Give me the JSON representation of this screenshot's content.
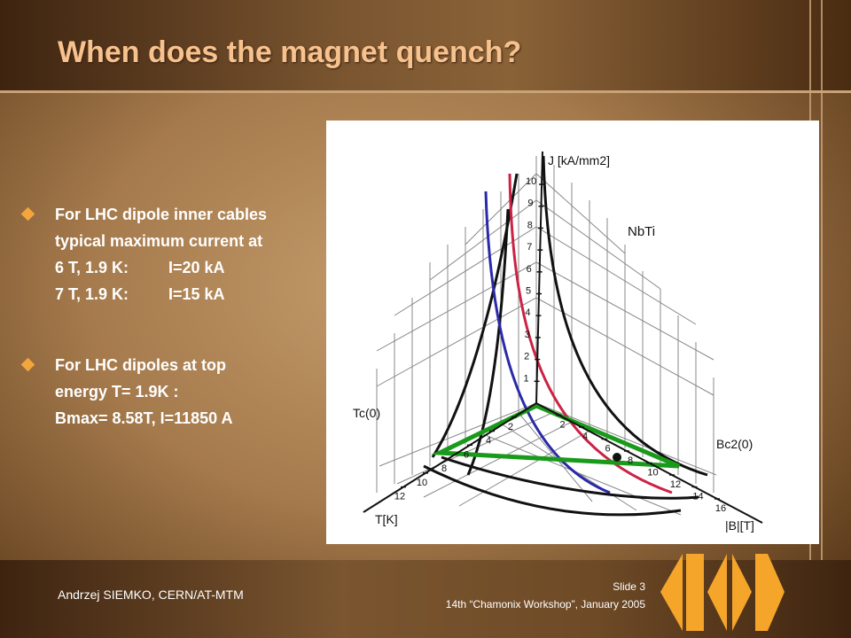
{
  "slide": {
    "title": "When does the magnet quench?",
    "bullets": [
      {
        "lines": [
          "For LHC dipole inner cables",
          "typical maximum current at"
        ],
        "rows": [
          [
            "6 T, 1.9 K:",
            "I=20 kA"
          ],
          [
            "7 T, 1.9 K:",
            "I=15 kA"
          ]
        ]
      },
      {
        "lines": [
          "For LHC dipoles at top",
          "energy T= 1.9K :",
          "Bmax= 8.58T, I=11850 A"
        ]
      }
    ],
    "figure": {
      "j_axis_label": "J [kA/mm2]",
      "material": "NbTi",
      "tc_label": "Tc(0)",
      "bc2_label": "Bc2(0)",
      "t_axis_label": "T[K]",
      "b_axis_label": "|B|[T]",
      "j_ticks": [
        1,
        2,
        3,
        4,
        5,
        6,
        7,
        8,
        9,
        10
      ],
      "t_ticks": [
        2,
        4,
        6,
        8,
        10,
        12
      ],
      "b_ticks": [
        2,
        4,
        6,
        8,
        10,
        12,
        14,
        16
      ]
    },
    "footer": {
      "author": "Andrzej SIEMKO,  CERN/AT-MTM",
      "slide_number": "Slide 3",
      "event": "14th “Chamonix Workshop”, January 2005"
    }
  }
}
